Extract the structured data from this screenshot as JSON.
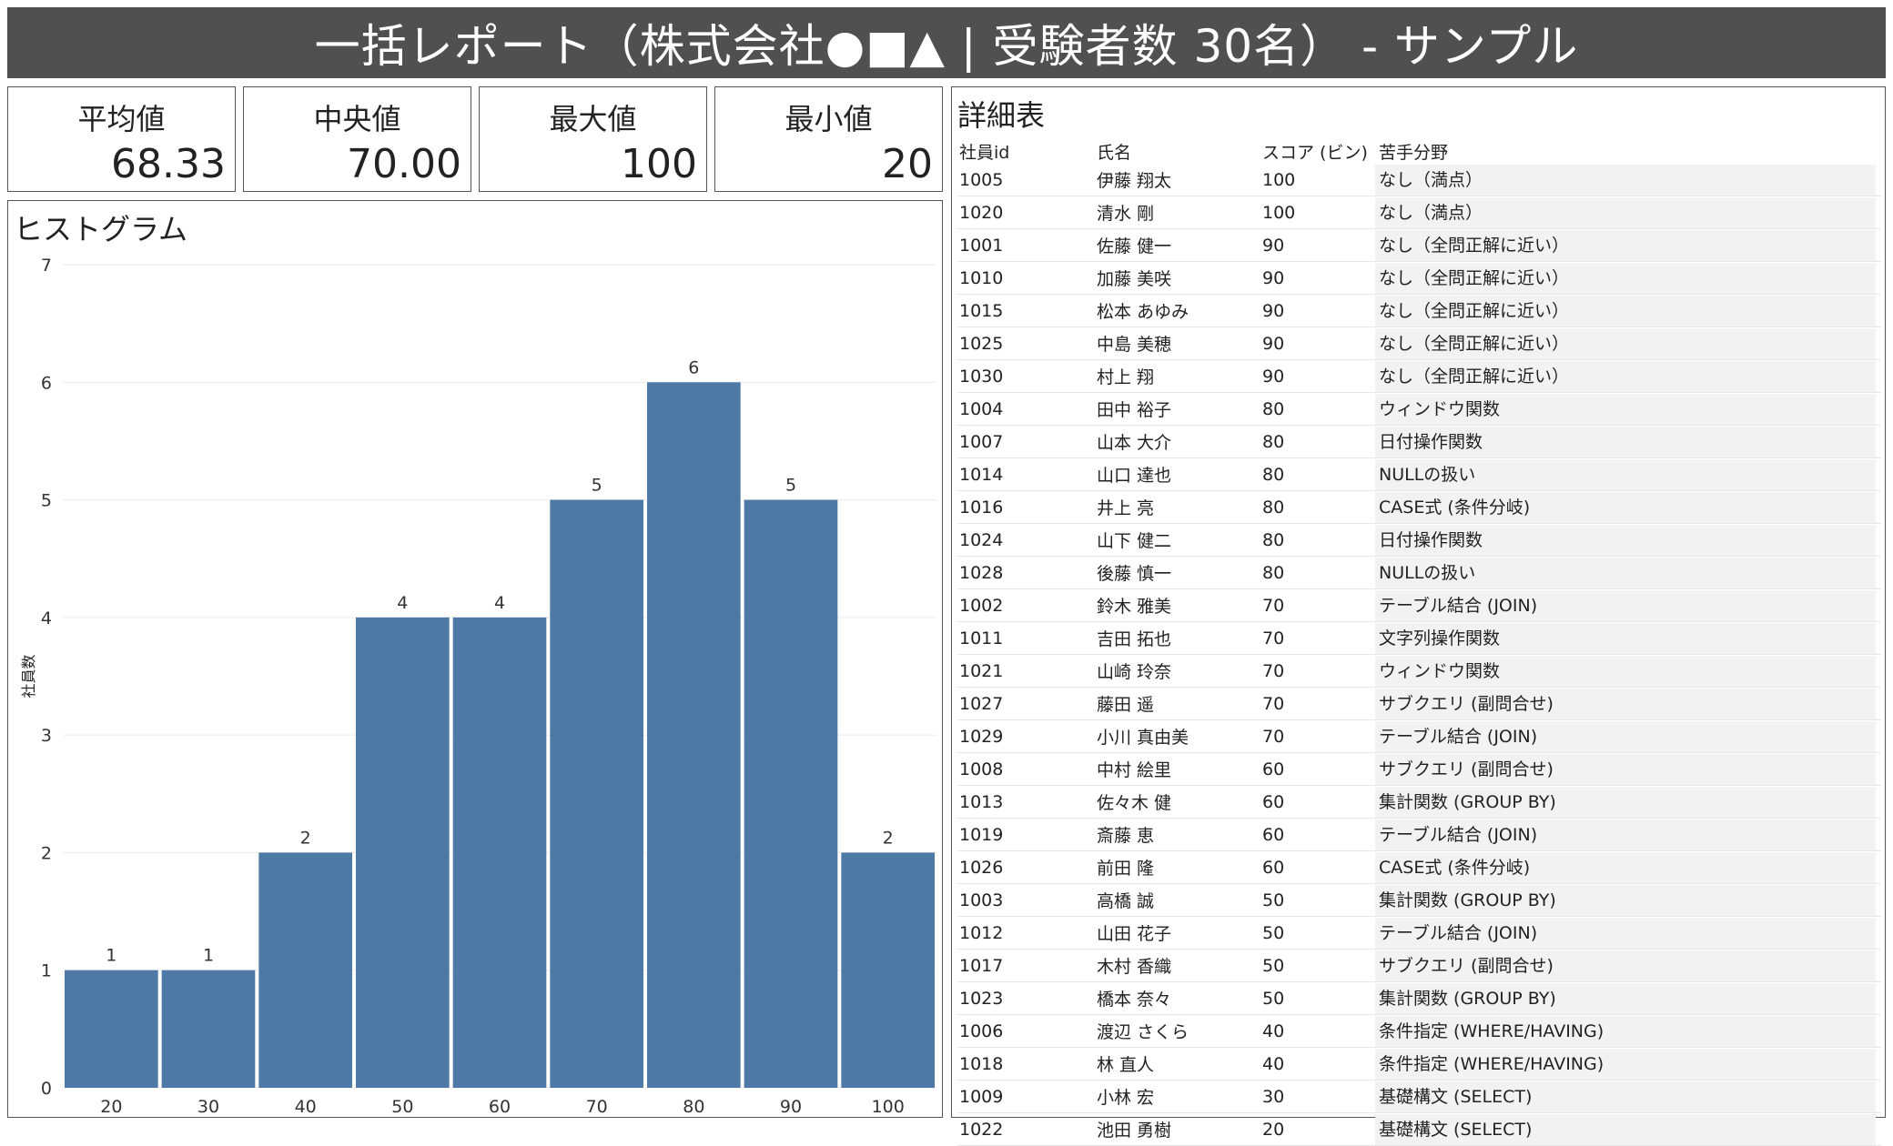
{
  "header": {
    "title": "一括レポート（株式会社●■▲ | 受験者数 30名） - サンプル"
  },
  "kpis": [
    {
      "label": "平均値",
      "value": "68.33"
    },
    {
      "label": "中央値",
      "value": "70.00"
    },
    {
      "label": "最大値",
      "value": "100"
    },
    {
      "label": "最小値",
      "value": "20"
    }
  ],
  "histogram": {
    "panel_title": "ヒストグラム"
  },
  "chart_data": {
    "type": "bar",
    "categories": [
      "20",
      "30",
      "40",
      "50",
      "60",
      "70",
      "80",
      "90",
      "100"
    ],
    "values": [
      1,
      1,
      2,
      4,
      4,
      5,
      6,
      5,
      2
    ],
    "ylabel": "社員数",
    "ylim": [
      0,
      7
    ],
    "yticks": [
      0,
      1,
      2,
      3,
      4,
      5,
      6,
      7
    ],
    "grid": true,
    "bar_color": "#4e79a7",
    "data_labels": true
  },
  "detail": {
    "panel_title": "詳細表",
    "columns": [
      "社員id",
      "氏名",
      "スコア (ビン)",
      "苦手分野"
    ],
    "rows": [
      [
        "1005",
        "伊藤 翔太",
        "100",
        "なし（満点）"
      ],
      [
        "1020",
        "清水 剛",
        "100",
        "なし（満点）"
      ],
      [
        "1001",
        "佐藤 健一",
        "90",
        "なし（全問正解に近い）"
      ],
      [
        "1010",
        "加藤 美咲",
        "90",
        "なし（全問正解に近い）"
      ],
      [
        "1015",
        "松本 あゆみ",
        "90",
        "なし（全問正解に近い）"
      ],
      [
        "1025",
        "中島 美穂",
        "90",
        "なし（全問正解に近い）"
      ],
      [
        "1030",
        "村上 翔",
        "90",
        "なし（全問正解に近い）"
      ],
      [
        "1004",
        "田中 裕子",
        "80",
        "ウィンドウ関数"
      ],
      [
        "1007",
        "山本 大介",
        "80",
        "日付操作関数"
      ],
      [
        "1014",
        "山口 達也",
        "80",
        "NULLの扱い"
      ],
      [
        "1016",
        "井上 亮",
        "80",
        "CASE式 (条件分岐)"
      ],
      [
        "1024",
        "山下 健二",
        "80",
        "日付操作関数"
      ],
      [
        "1028",
        "後藤 慎一",
        "80",
        "NULLの扱い"
      ],
      [
        "1002",
        "鈴木 雅美",
        "70",
        "テーブル結合 (JOIN)"
      ],
      [
        "1011",
        "吉田 拓也",
        "70",
        "文字列操作関数"
      ],
      [
        "1021",
        "山崎 玲奈",
        "70",
        "ウィンドウ関数"
      ],
      [
        "1027",
        "藤田 遥",
        "70",
        "サブクエリ (副問合せ)"
      ],
      [
        "1029",
        "小川 真由美",
        "70",
        "テーブル結合 (JOIN)"
      ],
      [
        "1008",
        "中村 絵里",
        "60",
        "サブクエリ (副問合せ)"
      ],
      [
        "1013",
        "佐々木 健",
        "60",
        "集計関数 (GROUP BY)"
      ],
      [
        "1019",
        "斎藤 恵",
        "60",
        "テーブル結合 (JOIN)"
      ],
      [
        "1026",
        "前田 隆",
        "60",
        "CASE式 (条件分岐)"
      ],
      [
        "1003",
        "高橋 誠",
        "50",
        "集計関数 (GROUP BY)"
      ],
      [
        "1012",
        "山田 花子",
        "50",
        "テーブル結合 (JOIN)"
      ],
      [
        "1017",
        "木村 香織",
        "50",
        "サブクエリ (副問合せ)"
      ],
      [
        "1023",
        "橋本 奈々",
        "50",
        "集計関数 (GROUP BY)"
      ],
      [
        "1006",
        "渡辺 さくら",
        "40",
        "条件指定 (WHERE/HAVING)"
      ],
      [
        "1018",
        "林 直人",
        "40",
        "条件指定 (WHERE/HAVING)"
      ],
      [
        "1009",
        "小林 宏",
        "30",
        "基礎構文 (SELECT)"
      ],
      [
        "1022",
        "池田 勇樹",
        "20",
        "基礎構文 (SELECT)"
      ]
    ]
  }
}
